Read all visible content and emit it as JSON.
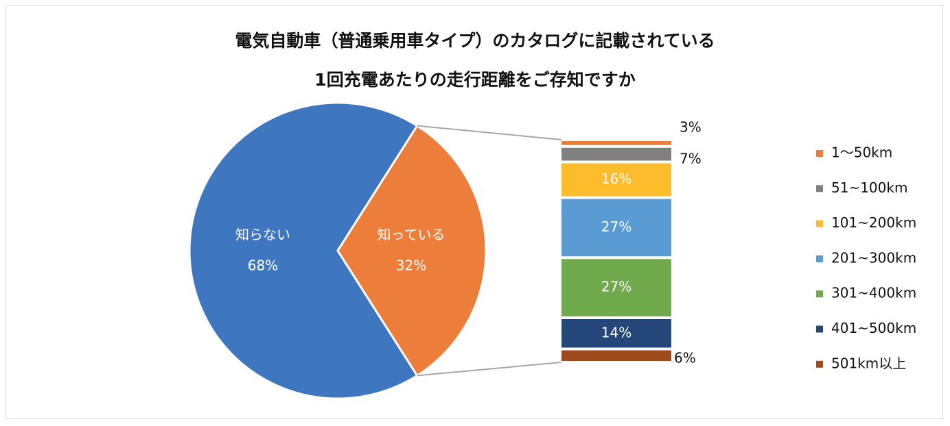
{
  "chart_data": {
    "type": "bar-of-pie",
    "title": [
      "電気自動車（普通乗用車タイプ）のカタログに記載されている",
      "1回充電あたりの走行距離をご存知ですか"
    ],
    "pie": {
      "slices": [
        {
          "label": "知らない",
          "value": 68,
          "value_label": "68%",
          "color": "#3f76c0"
        },
        {
          "label": "知っている",
          "value": 32,
          "value_label": "32%",
          "color": "#ec7d3a"
        }
      ]
    },
    "bar": {
      "categories": [
        "1〜50km",
        "51~100km",
        "101~200km",
        "201~300km",
        "301~400km",
        "401~500km",
        "501km以上"
      ],
      "values": [
        3,
        7,
        16,
        27,
        27,
        14,
        6
      ],
      "value_labels": [
        "3%",
        "7%",
        "16%",
        "27%",
        "27%",
        "14%",
        "6%"
      ],
      "colors": [
        "#ec7d3a",
        "#808080",
        "#fcbc2c",
        "#5a9bd4",
        "#71a94d",
        "#244679",
        "#9e4a1c"
      ]
    },
    "legend_position": "right"
  }
}
